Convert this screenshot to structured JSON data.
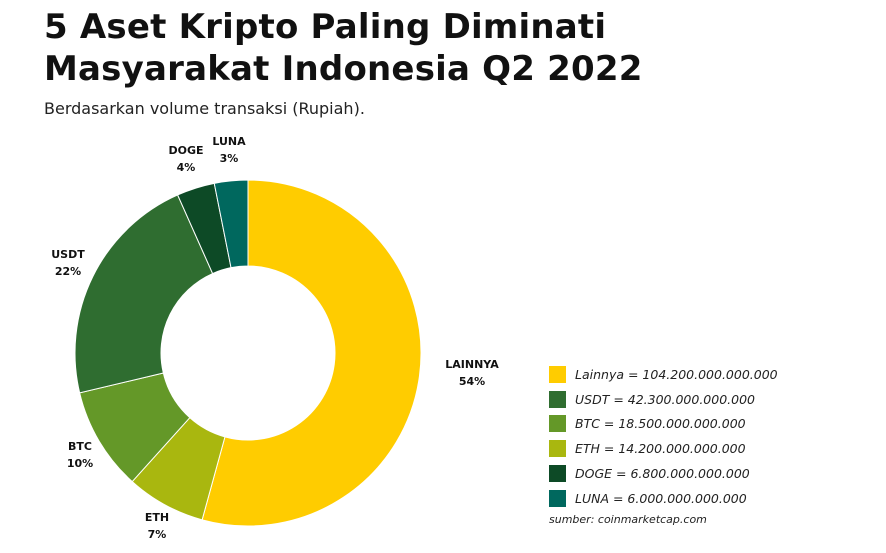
{
  "header": {
    "title_line1": "5 Aset Kripto Paling Diminati",
    "title_line2": "Masyarakat Indonesia Q2 2022",
    "subtitle": "Berdasarkan volume transaksi (Rupiah)."
  },
  "chart_data": {
    "type": "pie",
    "variant": "donut",
    "title": "5 Aset Kripto Paling Diminati Masyarakat Indonesia Q2 2022",
    "subtitle": "Berdasarkan volume transaksi (Rupiah).",
    "slices": [
      {
        "name": "LAINNYA",
        "percent_label": "54%",
        "value": 104200000000000,
        "color": "#FFCC00",
        "legend": "Lainnya = 104.200.000.000.000"
      },
      {
        "name": "ETH",
        "percent_label": "7%",
        "value": 14200000000000,
        "color": "#A9B70F",
        "legend": "ETH = 14.200.000.000.000"
      },
      {
        "name": "BTC",
        "percent_label": "10%",
        "value": 18500000000000,
        "color": "#649828",
        "legend": "BTC = 18.500.000.000.000"
      },
      {
        "name": "USDT",
        "percent_label": "22%",
        "value": 42300000000000,
        "color": "#2F6D30",
        "legend": "USDT = 42.300.000.000.000"
      },
      {
        "name": "DOGE",
        "percent_label": "4%",
        "value": 6800000000000,
        "color": "#0D4A26",
        "legend": "DOGE = 6.800.000.000.000"
      },
      {
        "name": "LUNA",
        "percent_label": "3%",
        "value": 6000000000000,
        "color": "#00685E",
        "legend": "LUNA = 6.000.000.000.000"
      }
    ],
    "legend_items": [
      {
        "text": "Lainnya = 104.200.000.000.000",
        "color": "#FFCC00"
      },
      {
        "text": "USDT = 42.300.000.000.000",
        "color": "#2F6D30"
      },
      {
        "text": "BTC = 18.500.000.000.000",
        "color": "#649828"
      },
      {
        "text": "ETH = 14.200.000.000.000",
        "color": "#A9B70F"
      },
      {
        "text": "DOGE = 6.800.000.000.000",
        "color": "#0D4A26"
      },
      {
        "text": "LUNA = 6.000.000.000.000",
        "color": "#00685E"
      }
    ],
    "source": "sumber: coinmarketcap.com",
    "start": "12 o'clock",
    "direction": "clockwise"
  }
}
